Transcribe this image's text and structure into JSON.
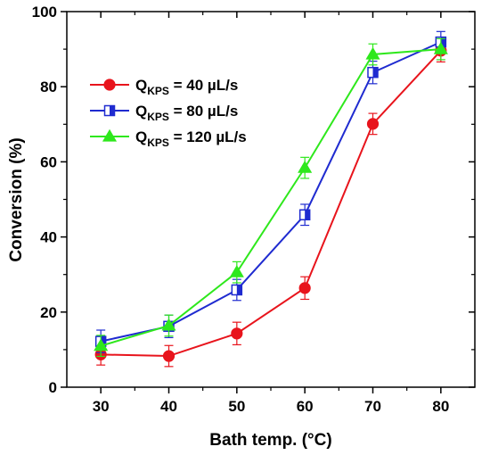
{
  "chart_data": {
    "type": "line",
    "xlabel": "Bath temp. (°C)",
    "ylabel": "Conversion (%)",
    "xlim": [
      25,
      85
    ],
    "ylim": [
      0,
      100
    ],
    "xticks": [
      30,
      40,
      50,
      60,
      70,
      80
    ],
    "yticks": [
      0,
      20,
      40,
      60,
      80,
      100
    ],
    "x": [
      30,
      40,
      50,
      60,
      70,
      80
    ],
    "legend_position": "upper-left",
    "series": [
      {
        "name_main": "Q",
        "name_sub": "KPS",
        "name_rest": " = 40 µL/s",
        "color": "#e8141c",
        "marker": "circle",
        "values": [
          8.7,
          8.3,
          14.3,
          26.4,
          70.1,
          89.6
        ],
        "errors": [
          2.8,
          2.8,
          3.0,
          3.0,
          2.8,
          3.0
        ]
      },
      {
        "name_main": "Q",
        "name_sub": "KPS",
        "name_rest": " = 80 µL/s",
        "color": "#1f2bd0",
        "marker": "half-square",
        "values": [
          12.2,
          16.2,
          25.9,
          45.9,
          83.8,
          91.9
        ],
        "errors": [
          3.0,
          3.0,
          2.8,
          2.8,
          3.0,
          2.8
        ]
      },
      {
        "name_main": "Q",
        "name_sub": "KPS",
        "name_rest": " = 120 µL/s",
        "color": "#2ee81c",
        "marker": "triangle",
        "values": [
          11.0,
          16.4,
          30.6,
          58.4,
          88.6,
          90.0
        ],
        "errors": [
          2.8,
          2.8,
          2.8,
          2.8,
          2.8,
          2.8
        ]
      }
    ]
  }
}
